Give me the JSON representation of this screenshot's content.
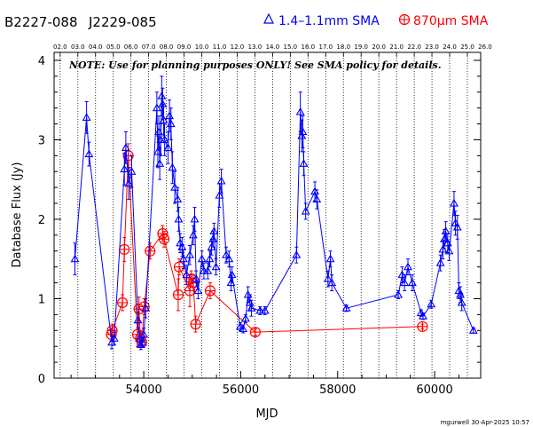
{
  "header": {
    "source_b1950": "B2227-088",
    "source_j2000": "J2229-085",
    "legend_blue": "1.4–1.1mm SMA",
    "legend_red_prefix": "870",
    "legend_red_mu": "μ",
    "legend_red_suffix": "m SMA",
    "note": "NOTE: Use for planning purposes ONLY!  See SMA policy for details.",
    "credit": "mgurwell 30-Apr-2025 10:57"
  },
  "chart_data": {
    "type": "scatter",
    "xlabel": "MJD",
    "ylabel": "Database Flux (Jy)",
    "xlim": [
      52150,
      60950
    ],
    "ylim": [
      0,
      4.1
    ],
    "x_ticks": [
      54000,
      56000,
      58000,
      60000
    ],
    "y_ticks": [
      0,
      1,
      2,
      3,
      4
    ],
    "grid": "vertical dotted lines at each year boundary",
    "legend_position": "top-right",
    "colors": {
      "blue": "#0000ff",
      "red": "#ff0000",
      "axis": "#000000"
    },
    "top_axis": [
      {
        "label": "02.0",
        "mjd": 52275
      },
      {
        "label": "03.0",
        "mjd": 52640
      },
      {
        "label": "04.0",
        "mjd": 53005
      },
      {
        "label": "05.0",
        "mjd": 53371
      },
      {
        "label": "06.0",
        "mjd": 53736
      },
      {
        "label": "07.0",
        "mjd": 54101
      },
      {
        "label": "08.0",
        "mjd": 54466
      },
      {
        "label": "09.0",
        "mjd": 54832
      },
      {
        "label": "10.0",
        "mjd": 55197
      },
      {
        "label": "11.0",
        "mjd": 55562
      },
      {
        "label": "12.0",
        "mjd": 55927
      },
      {
        "label": "13.0",
        "mjd": 56293
      },
      {
        "label": "14.0",
        "mjd": 56658
      },
      {
        "label": "15.0",
        "mjd": 57023
      },
      {
        "label": "16.0",
        "mjd": 57388
      },
      {
        "label": "17.0",
        "mjd": 57754
      },
      {
        "label": "18.0",
        "mjd": 58119
      },
      {
        "label": "19.0",
        "mjd": 58484
      },
      {
        "label": "20.0",
        "mjd": 58849
      },
      {
        "label": "21.0",
        "mjd": 59215
      },
      {
        "label": "22.0",
        "mjd": 59580
      },
      {
        "label": "23.0",
        "mjd": 59945
      },
      {
        "label": "24.0",
        "mjd": 60310
      },
      {
        "label": "25.0",
        "mjd": 60676
      },
      {
        "label": "26.0",
        "mjd": 61041
      }
    ],
    "series": [
      {
        "name": "1.4–1.1mm SMA",
        "color": "#0000ff",
        "marker": "triangle",
        "connected": true,
        "points": [
          [
            52580,
            1.5,
            0.2
          ],
          [
            52820,
            3.28,
            0.2
          ],
          [
            52870,
            2.82,
            0.15
          ],
          [
            53340,
            0.45,
            0.08
          ],
          [
            53390,
            0.5,
            0.08
          ],
          [
            53600,
            2.63,
            0.2
          ],
          [
            53630,
            2.9,
            0.2
          ],
          [
            53690,
            2.45,
            0.2
          ],
          [
            53750,
            2.6,
            0.2
          ],
          [
            53880,
            0.73,
            0.1
          ],
          [
            53910,
            0.5,
            0.08
          ],
          [
            53940,
            0.42,
            0.06
          ],
          [
            53970,
            0.45,
            0.06
          ],
          [
            54000,
            0.55,
            0.08
          ],
          [
            54040,
            0.88,
            0.12
          ],
          [
            54270,
            3.4,
            0.2
          ],
          [
            54290,
            2.85,
            0.2
          ],
          [
            54310,
            3.1,
            0.2
          ],
          [
            54330,
            2.7,
            0.2
          ],
          [
            54350,
            3.0,
            0.2
          ],
          [
            54370,
            3.55,
            0.25
          ],
          [
            54390,
            3.45,
            0.2
          ],
          [
            54410,
            3.25,
            0.2
          ],
          [
            54430,
            3.0,
            0.2
          ],
          [
            54500,
            2.9,
            0.2
          ],
          [
            54530,
            3.3,
            0.2
          ],
          [
            54560,
            3.2,
            0.2
          ],
          [
            54590,
            2.65,
            0.2
          ],
          [
            54640,
            2.4,
            0.2
          ],
          [
            54700,
            2.25,
            0.15
          ],
          [
            54720,
            2.0,
            0.15
          ],
          [
            54750,
            1.7,
            0.12
          ],
          [
            54790,
            1.65,
            0.12
          ],
          [
            54820,
            1.5,
            0.12
          ],
          [
            54880,
            1.3,
            0.12
          ],
          [
            54950,
            1.55,
            0.12
          ],
          [
            55020,
            1.8,
            0.12
          ],
          [
            55050,
            2.0,
            0.15
          ],
          [
            55080,
            1.25,
            0.1
          ],
          [
            55120,
            1.1,
            0.1
          ],
          [
            55200,
            1.5,
            0.1
          ],
          [
            55240,
            1.35,
            0.1
          ],
          [
            55320,
            1.35,
            0.1
          ],
          [
            55360,
            1.5,
            0.1
          ],
          [
            55400,
            1.65,
            0.1
          ],
          [
            55430,
            1.75,
            0.1
          ],
          [
            55450,
            1.85,
            0.1
          ],
          [
            55490,
            1.4,
            0.1
          ],
          [
            55560,
            2.3,
            0.15
          ],
          [
            55600,
            2.48,
            0.15
          ],
          [
            55700,
            1.55,
            0.1
          ],
          [
            55760,
            1.5,
            0.1
          ],
          [
            55800,
            1.2,
            0.1
          ],
          [
            55820,
            1.3,
            0.1
          ],
          [
            55990,
            0.65,
            0.05
          ],
          [
            56050,
            0.62,
            0.05
          ],
          [
            56100,
            0.75,
            0.05
          ],
          [
            56150,
            1.05,
            0.1
          ],
          [
            56190,
            0.95,
            0.1
          ],
          [
            56220,
            0.88,
            0.1
          ],
          [
            56400,
            0.85,
            0.05
          ],
          [
            56500,
            0.85,
            0.05
          ],
          [
            57150,
            1.55,
            0.1
          ],
          [
            57230,
            3.35,
            0.25
          ],
          [
            57260,
            3.05,
            0.2
          ],
          [
            57280,
            3.1,
            0.2
          ],
          [
            57300,
            2.7,
            0.15
          ],
          [
            57340,
            2.1,
            0.1
          ],
          [
            57530,
            2.35,
            0.12
          ],
          [
            57570,
            2.25,
            0.12
          ],
          [
            57800,
            1.25,
            0.1
          ],
          [
            57850,
            1.5,
            0.1
          ],
          [
            57880,
            1.2,
            0.1
          ],
          [
            58180,
            0.88,
            0.04
          ],
          [
            59250,
            1.05,
            0.05
          ],
          [
            59330,
            1.3,
            0.1
          ],
          [
            59380,
            1.2,
            0.1
          ],
          [
            59450,
            1.4,
            0.1
          ],
          [
            59540,
            1.2,
            0.1
          ],
          [
            59720,
            0.82,
            0.04
          ],
          [
            59760,
            0.78,
            0.04
          ],
          [
            59930,
            0.93,
            0.05
          ],
          [
            60120,
            1.45,
            0.1
          ],
          [
            60170,
            1.62,
            0.12
          ],
          [
            60200,
            1.75,
            0.12
          ],
          [
            60230,
            1.85,
            0.12
          ],
          [
            60270,
            1.7,
            0.12
          ],
          [
            60300,
            1.6,
            0.12
          ],
          [
            60400,
            2.2,
            0.15
          ],
          [
            60430,
            1.95,
            0.15
          ],
          [
            60470,
            1.9,
            0.15
          ],
          [
            60500,
            1.1,
            0.1
          ],
          [
            60530,
            1.05,
            0.1
          ],
          [
            60560,
            0.95,
            0.1
          ],
          [
            60800,
            0.6,
            0.03
          ]
        ]
      },
      {
        "name": "870μm SMA",
        "color": "#ff0000",
        "marker": "circle-plus",
        "connected": true,
        "points": [
          [
            53330,
            0.55,
            0.08
          ],
          [
            53350,
            0.6,
            0.08
          ],
          [
            53560,
            0.95,
            0.1
          ],
          [
            53600,
            1.62,
            0.15
          ],
          [
            53680,
            2.8,
            0.15
          ],
          [
            53870,
            0.55,
            0.15
          ],
          [
            53900,
            0.87,
            0.15
          ],
          [
            53930,
            0.5,
            0.1
          ],
          [
            53960,
            0.45,
            0.05
          ],
          [
            54010,
            0.9,
            0.1
          ],
          [
            54130,
            1.6,
            0.1
          ],
          [
            54390,
            1.82,
            0.1
          ],
          [
            54420,
            1.75,
            0.1
          ],
          [
            54710,
            1.05,
            0.2
          ],
          [
            54730,
            1.4,
            0.1
          ],
          [
            54950,
            1.1,
            0.2
          ],
          [
            54980,
            1.25,
            0.1
          ],
          [
            55020,
            1.2,
            0.1
          ],
          [
            55070,
            0.68,
            0.1
          ],
          [
            55370,
            1.1,
            0.1
          ],
          [
            56300,
            0.58,
            0.04
          ],
          [
            59750,
            0.65,
            0.03
          ]
        ]
      }
    ]
  }
}
